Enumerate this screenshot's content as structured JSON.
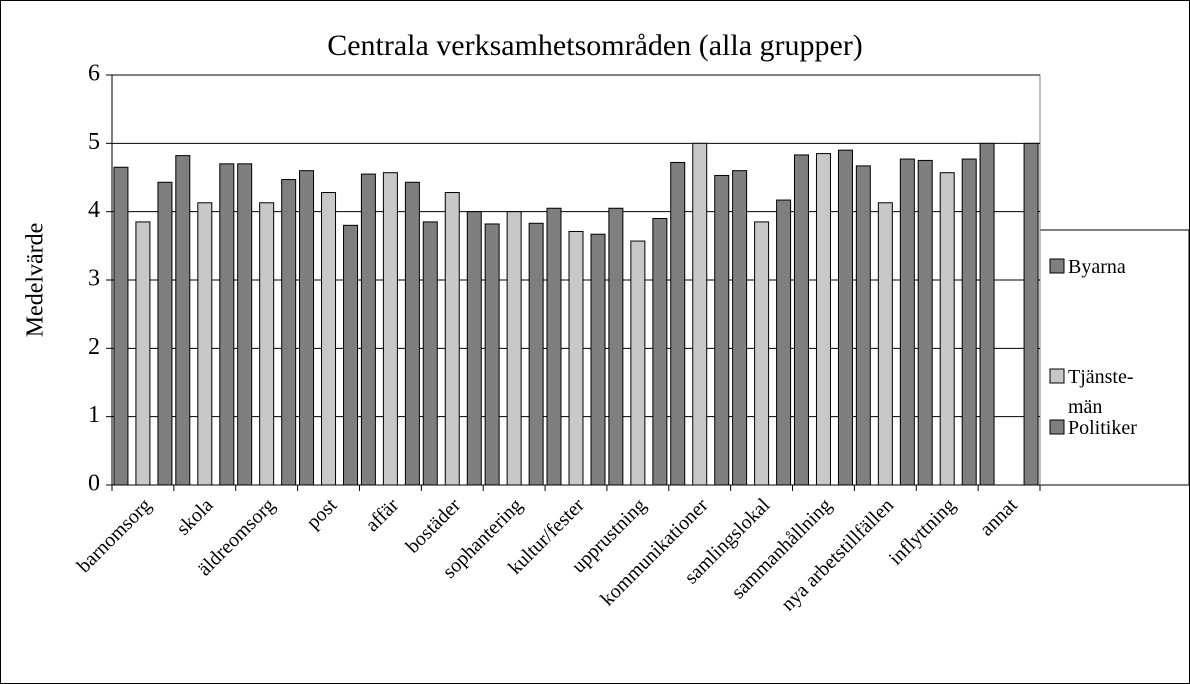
{
  "chart_data": {
    "type": "bar",
    "title": "Centrala verksamhetsområden (alla grupper)",
    "y_label": "Medelvärde",
    "categories": [
      "barnomsorg",
      "skola",
      "äldreomsorg",
      "post",
      "affär",
      "bostäder",
      "sophantering",
      "kultur/fester",
      "upprustning",
      "kommunikationer",
      "samlingslokal",
      "sammanhållning",
      "nya arbetstillfällen",
      "inflyttning",
      "annat"
    ],
    "series": [
      {
        "name": "Byarna",
        "color": "#7f7f7f",
        "values": [
          4.65,
          4.82,
          4.7,
          4.6,
          4.55,
          3.85,
          3.82,
          4.05,
          4.05,
          4.72,
          4.6,
          4.83,
          4.67,
          4.75,
          5.0
        ]
      },
      {
        "name": "Tjänste-män",
        "color": "#c8c8c8",
        "values": [
          3.85,
          4.13,
          4.13,
          4.28,
          4.57,
          4.28,
          4.0,
          3.71,
          3.57,
          5.0,
          3.85,
          4.85,
          4.13,
          4.57,
          null
        ]
      },
      {
        "name": "Politiker",
        "color": "#7f7f7f",
        "values": [
          4.43,
          4.7,
          4.47,
          3.8,
          4.43,
          4.0,
          3.83,
          3.67,
          3.9,
          4.53,
          4.17,
          4.9,
          4.77,
          4.77,
          5.0
        ]
      }
    ],
    "ylim": [
      0,
      6
    ],
    "yticks": [
      0,
      1,
      2,
      3,
      4,
      5,
      6
    ],
    "grid": true,
    "legend": "right"
  }
}
